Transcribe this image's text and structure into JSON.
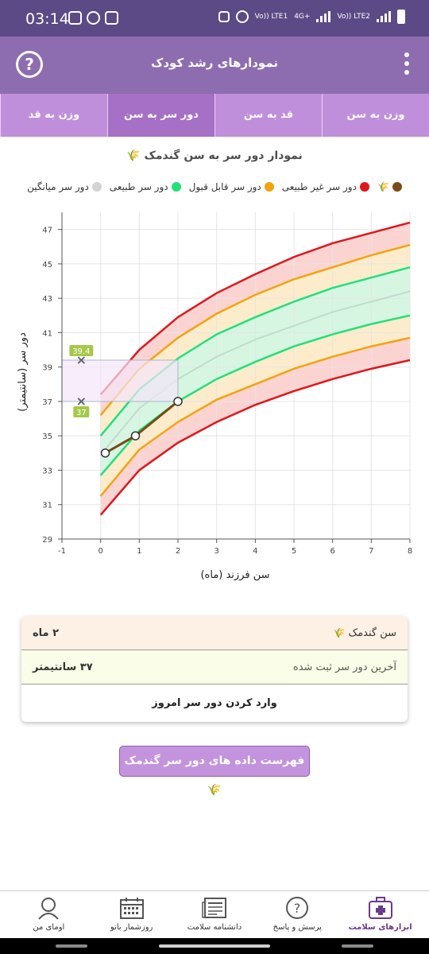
{
  "statusbar": {
    "time": "03:14",
    "net1": "Vo)) LTE1",
    "net2": "4G+",
    "net3": "Vo)) LTE2"
  },
  "appbar": {
    "title": "نمودارهای رشد کودک",
    "help_icon": "question-circle-icon",
    "more_icon": "more-vertical-icon"
  },
  "tabs": [
    {
      "label": "وزن به سن",
      "active": false
    },
    {
      "label": "قد به سن",
      "active": false
    },
    {
      "label": "دور سر به سن",
      "active": true
    },
    {
      "label": "وزن به قد",
      "active": false
    }
  ],
  "chart_title": "نمودار دور سر به سن گندمک 🌾",
  "legend": {
    "child_icon": "🌾",
    "items": [
      {
        "label": "دور سر غیر طبیعی",
        "color": "#e0151b"
      },
      {
        "label": "دور سر قابل قبول",
        "color": "#f2a40f"
      },
      {
        "label": "دور سر طبیعی",
        "color": "#22e07a"
      },
      {
        "label": "دور سر میانگین",
        "color": "#d3d3d3"
      }
    ],
    "child_color": "#7a4a18"
  },
  "chart_data": {
    "type": "line",
    "xlabel": "سن فرزند (ماه)",
    "ylabel": "دور سر (سانتیمتر)",
    "xlim": [
      -1,
      8
    ],
    "ylim": [
      29,
      48
    ],
    "xticks": [
      -1,
      0,
      1,
      2,
      3,
      4,
      5,
      6,
      7,
      8
    ],
    "yticks": [
      29,
      31,
      33,
      35,
      37,
      39,
      41,
      43,
      45,
      47
    ],
    "x": [
      0,
      1,
      2,
      3,
      4,
      5,
      6,
      7,
      8
    ],
    "series": [
      {
        "key": "abnormal_upper",
        "color": "#e0151b",
        "values": [
          37.4,
          40.0,
          41.9,
          43.3,
          44.4,
          45.4,
          46.2,
          46.8,
          47.4
        ]
      },
      {
        "key": "acceptable_upper",
        "color": "#f2a40f",
        "values": [
          36.2,
          38.9,
          40.7,
          42.1,
          43.2,
          44.1,
          44.8,
          45.5,
          46.1
        ]
      },
      {
        "key": "normal_upper",
        "color": "#22e07a",
        "values": [
          35.0,
          37.7,
          39.5,
          40.9,
          41.9,
          42.8,
          43.6,
          44.2,
          44.8
        ]
      },
      {
        "key": "mean",
        "color": "#bfdccd",
        "values": [
          33.9,
          36.6,
          38.3,
          39.6,
          40.6,
          41.4,
          42.2,
          42.8,
          43.4
        ]
      },
      {
        "key": "normal_lower",
        "color": "#22e07a",
        "values": [
          32.7,
          35.3,
          37.0,
          38.3,
          39.3,
          40.2,
          40.9,
          41.5,
          42.0
        ]
      },
      {
        "key": "acceptable_lower",
        "color": "#f2a40f",
        "values": [
          31.5,
          34.2,
          35.8,
          37.1,
          38.0,
          38.9,
          39.6,
          40.2,
          40.7
        ]
      },
      {
        "key": "abnormal_lower",
        "color": "#e0151b",
        "values": [
          30.4,
          33.0,
          34.6,
          35.8,
          36.8,
          37.6,
          38.3,
          38.9,
          39.4
        ]
      }
    ],
    "child": {
      "x": [
        0.12,
        0.9,
        2.0
      ],
      "values": [
        34.0,
        35.0,
        37.0
      ],
      "color": "#7a4a18"
    },
    "markers": [
      {
        "label": "39.4",
        "value": 39.4
      },
      {
        "label": "37",
        "value": 37
      }
    ],
    "grid": true
  },
  "card": {
    "age_label": "سن گندمک",
    "age_value": "۲ ماه",
    "last_label": "آخرین دور سر ثبت شده",
    "last_value": "۳۷ سانتیمتر",
    "action": "وارد کردن دور سر امروز"
  },
  "list_button": "فهرست داده های دور سر گندمک 🌾",
  "bottomnav": [
    {
      "label": "ابزارهای سلامت",
      "icon": "first-aid-kit-icon",
      "active": true
    },
    {
      "label": "پرسش و پاسخ",
      "icon": "question-bubble-icon",
      "active": false
    },
    {
      "label": "دانشنامه سلامت",
      "icon": "newspaper-icon",
      "active": false
    },
    {
      "label": "روزشمار بانو",
      "icon": "calendar-icon",
      "active": false
    },
    {
      "label": "اومای من",
      "icon": "avatar-icon",
      "active": false
    }
  ]
}
